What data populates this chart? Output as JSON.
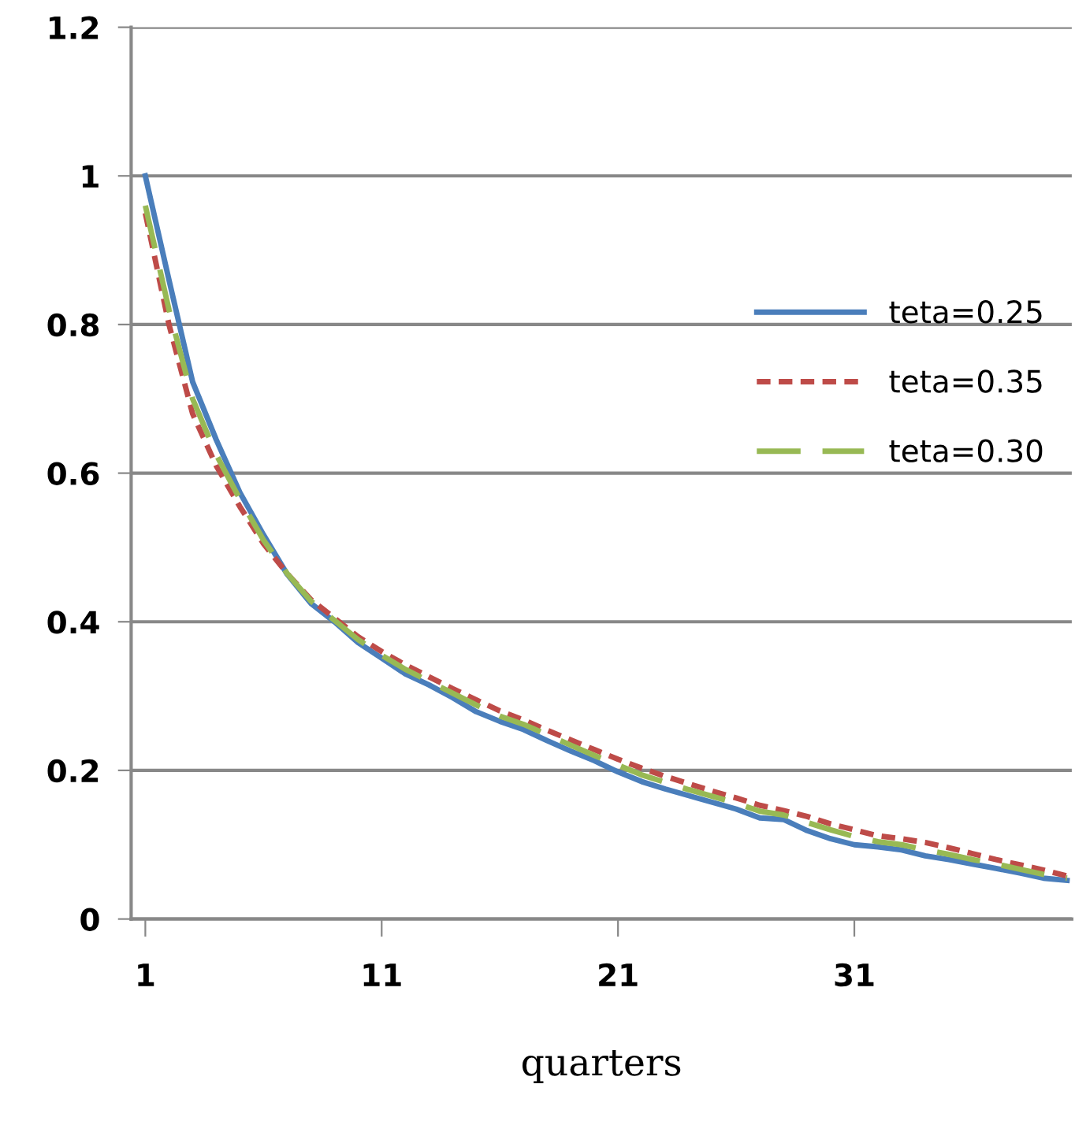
{
  "chart_data": {
    "type": "line",
    "xlabel": "quarters",
    "categories": [
      "1",
      null,
      null,
      null,
      null,
      null,
      null,
      null,
      null,
      null,
      "11",
      null,
      null,
      null,
      null,
      null,
      null,
      null,
      null,
      null,
      "21",
      null,
      null,
      null,
      null,
      null,
      null,
      null,
      null,
      null,
      "31",
      null,
      null,
      null,
      null,
      null,
      null,
      null,
      null,
      null
    ],
    "series": [
      {
        "name": "teta=0.25",
        "color": "#4a7ebb",
        "line_style": "solid",
        "values": [
          1.0,
          0.86,
          0.723,
          0.645,
          0.574,
          0.517,
          0.464,
          0.425,
          0.4,
          0.372,
          0.351,
          0.33,
          0.315,
          0.298,
          0.279,
          0.266,
          0.255,
          0.24,
          0.226,
          0.213,
          0.198,
          0.185,
          0.175,
          0.166,
          0.157,
          0.148,
          0.136,
          0.134,
          0.119,
          0.108,
          0.1,
          0.097,
          0.093,
          0.085,
          0.08,
          0.074,
          0.068,
          0.062,
          0.055,
          0.052
        ]
      },
      {
        "name": "teta=0.35",
        "color": "#be4b48",
        "line_style": "dotted",
        "values": [
          0.95,
          0.8,
          0.68,
          0.61,
          0.555,
          0.505,
          0.465,
          0.43,
          0.405,
          0.38,
          0.36,
          0.342,
          0.326,
          0.31,
          0.295,
          0.28,
          0.268,
          0.254,
          0.241,
          0.228,
          0.215,
          0.203,
          0.192,
          0.182,
          0.172,
          0.163,
          0.153,
          0.146,
          0.138,
          0.128,
          0.12,
          0.112,
          0.108,
          0.103,
          0.096,
          0.088,
          0.08,
          0.073,
          0.066,
          0.058
        ]
      },
      {
        "name": "teta=0.30",
        "color": "#98b954",
        "line_style": "dashed",
        "values": [
          0.96,
          0.82,
          0.7,
          0.625,
          0.565,
          0.51,
          0.465,
          0.428,
          0.402,
          0.376,
          0.355,
          0.336,
          0.32,
          0.304,
          0.288,
          0.273,
          0.262,
          0.248,
          0.234,
          0.22,
          0.207,
          0.194,
          0.184,
          0.174,
          0.165,
          0.156,
          0.145,
          0.14,
          0.13,
          0.12,
          0.111,
          0.104,
          0.1,
          0.093,
          0.087,
          0.08,
          0.074,
          0.067,
          0.06,
          0.055
        ]
      }
    ],
    "ylim": [
      0,
      1.2
    ],
    "yticks": [
      0,
      0.2,
      0.4,
      0.6,
      0.8,
      1,
      1.2
    ],
    "grid": "y",
    "legend": "right",
    "marker": "none"
  }
}
